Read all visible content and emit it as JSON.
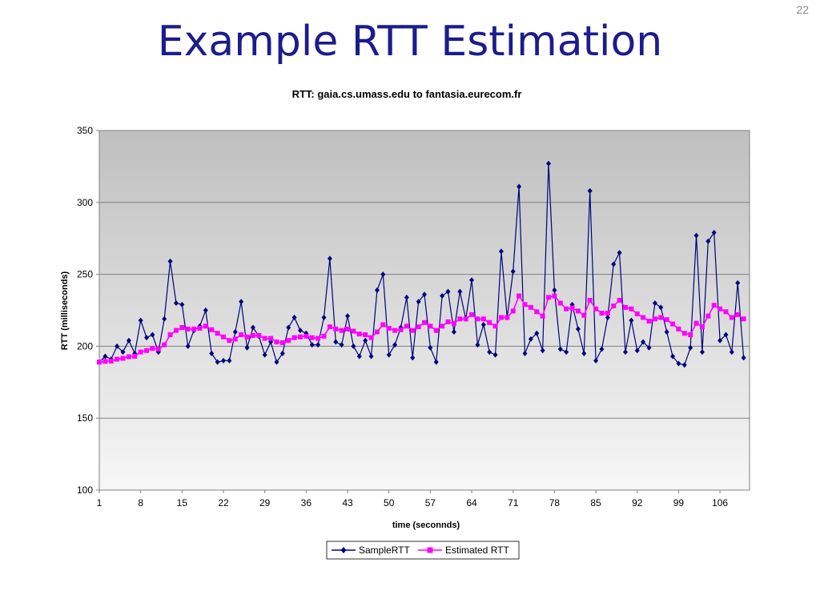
{
  "slide": {
    "number": "22",
    "title": "Example RTT Estimation"
  },
  "colors": {
    "sample": "#000080",
    "estimated": "#ff00ff",
    "grid": "#808080",
    "plot_top": "#bfbfbf",
    "plot_bottom": "#f7f7f7"
  },
  "chart_data": {
    "type": "line",
    "title": "RTT: gaia.cs.umass.edu to fantasia.eurecom.fr",
    "xlabel": "time (seconnds)",
    "ylabel": "RTT (milliseconds)",
    "ylim": [
      100,
      350
    ],
    "yticks": [
      100,
      150,
      200,
      250,
      300,
      350
    ],
    "xticks": [
      1,
      8,
      15,
      22,
      29,
      36,
      43,
      50,
      57,
      64,
      71,
      78,
      85,
      92,
      99,
      106
    ],
    "x_start": 1,
    "x_end": 111,
    "grid": true,
    "legend_position": "bottom",
    "series": [
      {
        "name": "SampleRTT",
        "marker": "diamond",
        "values": [
          189,
          193,
          191,
          200,
          196,
          204,
          195,
          218,
          206,
          208,
          196,
          219,
          259,
          230,
          229,
          200,
          211,
          214,
          225,
          195,
          189,
          190,
          190,
          210,
          231,
          199,
          213,
          207,
          194,
          203,
          189,
          195,
          213,
          220,
          211,
          209,
          201,
          201,
          220,
          261,
          203,
          201,
          221,
          200,
          193,
          204,
          193,
          239,
          250,
          194,
          201,
          213,
          234,
          192,
          231,
          236,
          199,
          189,
          235,
          238,
          210,
          238,
          219,
          246,
          201,
          215,
          196,
          194,
          266,
          220,
          252,
          311,
          195,
          205,
          209,
          197,
          327,
          239,
          198,
          196,
          229,
          212,
          195,
          308,
          190,
          198,
          220,
          257,
          265,
          196,
          218,
          197,
          203,
          199,
          230,
          227,
          210,
          193,
          188,
          187,
          199,
          277,
          196,
          273,
          279,
          204,
          208,
          196,
          244,
          192
        ]
      },
      {
        "name": "Estimated RTT",
        "marker": "square",
        "values": [
          189,
          189.5,
          189.7,
          191,
          191.6,
          192.7,
          193,
          196,
          197,
          198.5,
          198,
          201,
          208,
          211,
          213,
          212,
          212,
          212.5,
          214,
          211.5,
          209,
          206.5,
          204,
          205,
          208,
          206.5,
          207.5,
          207.5,
          205.5,
          205.5,
          203,
          202.5,
          204,
          206,
          206.5,
          207,
          206,
          205.5,
          207,
          213.5,
          212,
          211,
          212,
          210.5,
          208.5,
          208,
          206,
          210,
          215,
          212.5,
          211,
          211.5,
          214,
          211,
          213.5,
          216.5,
          214,
          211,
          214,
          217,
          216,
          219,
          219,
          222,
          219,
          219,
          216.5,
          214,
          220,
          220,
          224.5,
          235,
          229,
          227,
          224,
          221,
          234,
          235,
          230,
          226,
          226.5,
          224.5,
          221.5,
          232,
          226,
          223,
          223,
          228,
          232,
          227,
          226,
          222.5,
          220,
          217.5,
          219,
          220,
          218.5,
          215.5,
          212,
          209,
          208,
          216,
          213.5,
          221,
          228.5,
          226,
          224,
          220,
          222,
          219
        ]
      }
    ]
  }
}
